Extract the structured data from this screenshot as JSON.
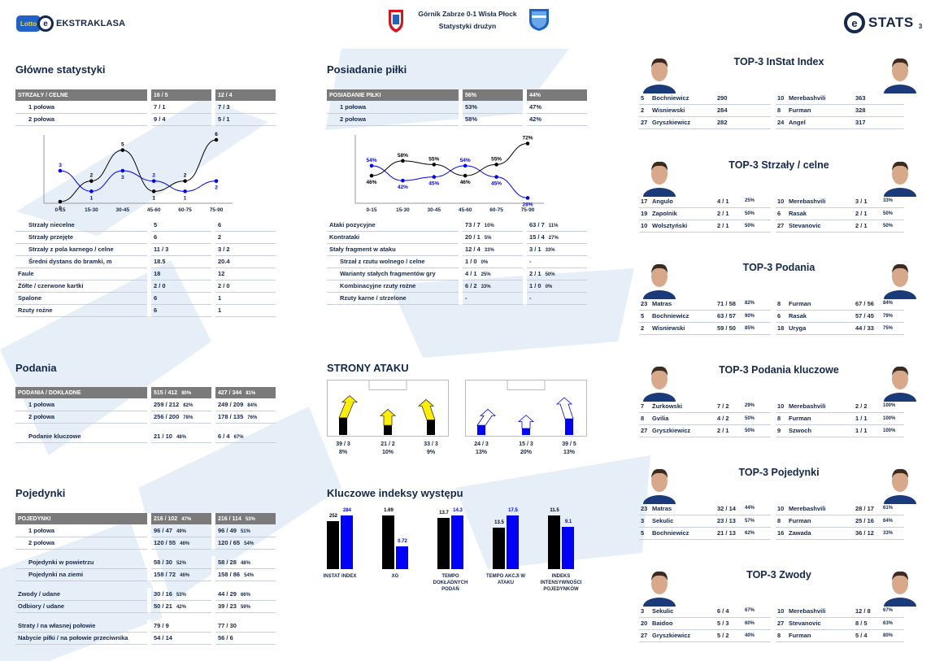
{
  "header": {
    "league": "EKSTRAKLASA",
    "lotto": "Lotto",
    "match_title": "Górnik Zabrze 0-1 Wisła Płock",
    "match_subtitle": "Statystyki drużyn",
    "stats_label": "STATS",
    "page_number": "3"
  },
  "colors": {
    "navy": "#14284b",
    "blue": "#0000ff",
    "black": "#000000",
    "yellow": "#ffee00",
    "header_gray": "#7a7a7a",
    "accent": "#1f63c9"
  },
  "main_stats": {
    "title": "Główne statystyki",
    "header": {
      "label": "STRZAŁY / CELNE",
      "home": "16 / 5",
      "away": "12 / 4"
    },
    "rows_top": [
      {
        "label": "1 połowa",
        "home": "7 / 1",
        "away": "7 / 3"
      },
      {
        "label": "2 połowa",
        "home": "9 / 4",
        "away": "5 / 1"
      }
    ],
    "rows_bottom": [
      {
        "label": "Strzały niecelne",
        "home": "5",
        "away": "6",
        "indent": true
      },
      {
        "label": "Strzały przejęte",
        "home": "6",
        "away": "2",
        "indent": true
      },
      {
        "label": "Strzały z pola karnego / celne",
        "home": "11 / 3",
        "away": "3 / 2",
        "indent": true
      },
      {
        "label": "Średni dystans do bramki, m",
        "home": "18.5",
        "away": "20.4",
        "indent": true
      },
      {
        "label": "Faule",
        "home": "18",
        "away": "12",
        "indent": false
      },
      {
        "label": "Żółte / czerwone kartki",
        "home": "2 / 0",
        "away": "2 / 0",
        "indent": false
      },
      {
        "label": "Spalone",
        "home": "6",
        "away": "1",
        "indent": false
      },
      {
        "label": "Rzuty rożne",
        "home": "6",
        "away": "1",
        "indent": false
      }
    ]
  },
  "possession": {
    "title": "Posiadanie piłki",
    "header": {
      "label": "POSIADANIE PIŁKI",
      "home": "56%",
      "away": "44%"
    },
    "rows_top": [
      {
        "label": "1 połowa",
        "home": "53%",
        "away": "47%"
      },
      {
        "label": "2 połowa",
        "home": "58%",
        "away": "42%"
      }
    ],
    "rows_bottom": [
      {
        "label": "Ataki pozycyjne",
        "home": "73 / 7",
        "home_pct": "10%",
        "away": "63 / 7",
        "away_pct": "11%",
        "indent": false
      },
      {
        "label": "Kontrataki",
        "home": "20 / 1",
        "home_pct": "5%",
        "away": "15 / 4",
        "away_pct": "27%",
        "indent": false
      },
      {
        "label": "Stały fragment w ataku",
        "home": "12 / 4",
        "home_pct": "33%",
        "away": "3 / 1",
        "away_pct": "33%",
        "indent": false
      },
      {
        "label": "Strzał z rzutu wolnego / celne",
        "home": "1 / 0",
        "home_pct": "0%",
        "away": "-",
        "away_pct": "",
        "indent": true
      },
      {
        "label": "Warianty stałych fragmentów gry",
        "home": "4 / 1",
        "home_pct": "25%",
        "away": "2 / 1",
        "away_pct": "50%",
        "indent": true
      },
      {
        "label": "Kombinacyjne rzuty rożne",
        "home": "6 / 2",
        "home_pct": "33%",
        "away": "1 / 0",
        "away_pct": "0%",
        "indent": true
      },
      {
        "label": "Rzuty karne / strzelone",
        "home": "-",
        "home_pct": "",
        "away": "-",
        "away_pct": "",
        "indent": true
      }
    ]
  },
  "passes": {
    "title": "Podania",
    "header": {
      "label": "PODANIA / DOKŁADNE",
      "home": "515 / 412",
      "home_pct": "80%",
      "away": "427 / 344",
      "away_pct": "81%"
    },
    "rows": [
      {
        "label": "1 połowa",
        "home": "259 / 212",
        "home_pct": "82%",
        "away": "249 / 209",
        "away_pct": "84%"
      },
      {
        "label": "2 połowa",
        "home": "256 / 200",
        "home_pct": "78%",
        "away": "178 / 135",
        "away_pct": "76%"
      },
      {
        "label": "Podanie kluczowe",
        "home": "21 / 10",
        "home_pct": "48%",
        "away": "6 / 4",
        "away_pct": "67%"
      }
    ]
  },
  "duels": {
    "title": "Pojedynki",
    "header": {
      "label": "POJEDYNKI",
      "home": "216 / 102",
      "home_pct": "47%",
      "away": "216 / 114",
      "away_pct": "53%"
    },
    "rows": [
      {
        "label": "1 połowa",
        "home": "96 / 47",
        "home_pct": "49%",
        "away": "96 / 49",
        "away_pct": "51%",
        "indent": true,
        "gap": false
      },
      {
        "label": "2 połowa",
        "home": "120 / 55",
        "home_pct": "46%",
        "away": "120 / 65",
        "away_pct": "54%",
        "indent": true,
        "gap": false
      },
      {
        "label": "Pojedynki w powietrzu",
        "home": "58 / 30",
        "home_pct": "52%",
        "away": "58 / 28",
        "away_pct": "48%",
        "indent": true,
        "gap": true
      },
      {
        "label": "Pojedynki na ziemi",
        "home": "158 / 72",
        "home_pct": "46%",
        "away": "158 / 86",
        "away_pct": "54%",
        "indent": true,
        "gap": false
      },
      {
        "label": "Zwody / udane",
        "home": "30 / 16",
        "home_pct": "53%",
        "away": "44 / 29",
        "away_pct": "66%",
        "indent": false,
        "gap": true
      },
      {
        "label": "Odbiory / udane",
        "home": "50 / 21",
        "home_pct": "42%",
        "away": "39 / 23",
        "away_pct": "59%",
        "indent": false,
        "gap": false
      },
      {
        "label": "Straty / na własnej połowie",
        "home": "79 / 9",
        "home_pct": "",
        "away": "77 / 30",
        "away_pct": "",
        "indent": false,
        "gap": true
      },
      {
        "label": "Nabycie piłki / na połowie przeciwnika",
        "home": "54 / 14",
        "home_pct": "",
        "away": "56 / 6",
        "away_pct": "",
        "indent": false,
        "gap": false
      }
    ]
  },
  "attack_sides": {
    "title": "STRONY ATAKU",
    "home": [
      {
        "value": "39 / 3",
        "pct": "8%",
        "level": 0.8
      },
      {
        "value": "21 / 2",
        "pct": "10%",
        "level": 0.45
      },
      {
        "value": "33 / 3",
        "pct": "9%",
        "level": 0.7
      }
    ],
    "away": [
      {
        "value": "24 / 3",
        "pct": "13%",
        "level": 0.45
      },
      {
        "value": "15 / 3",
        "pct": "20%",
        "level": 0.3
      },
      {
        "value": "39 / 5",
        "pct": "13%",
        "level": 0.75
      }
    ]
  },
  "key_indices": {
    "title": "Kluczowe indeksy występu",
    "items": [
      {
        "label": "INSTAT INDEX",
        "home": 252,
        "home_label": "252",
        "away": 284,
        "away_label": "284"
      },
      {
        "label": "XG",
        "home": 1.69,
        "home_label": "1.69",
        "away": 0.72,
        "away_label": "0.72"
      },
      {
        "label": "TEMPO DOKŁADNYCH PODAŃ",
        "home": 13.7,
        "home_label": "13.7",
        "away": 14.3,
        "away_label": "14.3"
      },
      {
        "label": "TEMPO AKCJI W ATAKU",
        "home": 13.5,
        "home_label": "13.5",
        "away": 17.5,
        "away_label": "17.5"
      },
      {
        "label": "INDEKS INTENSYWNOŚCI POJEDYNKÓW",
        "home": 11.5,
        "home_label": "11.5",
        "away": 9.1,
        "away_label": "9.1"
      }
    ]
  },
  "chart_data": [
    {
      "type": "line",
      "title": "",
      "categories": [
        "0-15",
        "15-30",
        "30-45",
        "45-60",
        "60-75",
        "75-90"
      ],
      "series": [
        {
          "values": [
            0,
            2,
            5,
            1,
            2,
            6
          ],
          "labels": [
            "0",
            "2",
            "5",
            "1",
            "2",
            "6"
          ]
        },
        {
          "values": [
            3,
            1,
            3,
            2,
            1,
            2
          ],
          "labels": [
            "3",
            "1",
            "3",
            "2",
            "1",
            "2"
          ]
        }
      ],
      "ylim": [
        0,
        6
      ]
    },
    {
      "type": "line",
      "title": "",
      "categories": [
        "0-15",
        "15-30",
        "30-45",
        "45-60",
        "60-75",
        "75-90"
      ],
      "series": [
        {
          "values": [
            46,
            58,
            55,
            46,
            55,
            72
          ],
          "labels": [
            "46%",
            "58%",
            "55%",
            "46%",
            "55%",
            "72%"
          ]
        },
        {
          "values": [
            54,
            42,
            45,
            54,
            45,
            28
          ],
          "labels": [
            "54%",
            "42%",
            "45%",
            "54%",
            "45%",
            "28%"
          ]
        }
      ],
      "ylim": [
        25,
        75
      ]
    }
  ],
  "top3": [
    {
      "title": "TOP-3 InStat Index",
      "rows": [
        {
          "hn": "5",
          "hp": "Bochniewicz",
          "hv": "290",
          "hpct": "",
          "an": "10",
          "ap": "Merebashvili",
          "av": "363",
          "apct": ""
        },
        {
          "hn": "2",
          "hp": "Wisniewski",
          "hv": "284",
          "hpct": "",
          "an": "8",
          "ap": "Furman",
          "av": "328",
          "apct": ""
        },
        {
          "hn": "27",
          "hp": "Gryszkiewicz",
          "hv": "282",
          "hpct": "",
          "an": "24",
          "ap": "Angel",
          "av": "317",
          "apct": ""
        }
      ]
    },
    {
      "title": "TOP-3 Strzały / celne",
      "rows": [
        {
          "hn": "17",
          "hp": "Angulo",
          "hv": "4 / 1",
          "hpct": "25%",
          "an": "10",
          "ap": "Merebashvili",
          "av": "3 / 1",
          "apct": "33%"
        },
        {
          "hn": "19",
          "hp": "Zapolnik",
          "hv": "2 / 1",
          "hpct": "50%",
          "an": "6",
          "ap": "Rasak",
          "av": "2 / 1",
          "apct": "50%"
        },
        {
          "hn": "10",
          "hp": "Wolsztyński",
          "hv": "2 / 1",
          "hpct": "50%",
          "an": "27",
          "ap": "Stevanovic",
          "av": "2 / 1",
          "apct": "50%"
        }
      ]
    },
    {
      "title": "TOP-3 Podania",
      "rows": [
        {
          "hn": "23",
          "hp": "Matras",
          "hv": "71 / 58",
          "hpct": "82%",
          "an": "8",
          "ap": "Furman",
          "av": "67 / 56",
          "apct": "84%"
        },
        {
          "hn": "5",
          "hp": "Bochniewicz",
          "hv": "63 / 57",
          "hpct": "90%",
          "an": "6",
          "ap": "Rasak",
          "av": "57 / 45",
          "apct": "79%"
        },
        {
          "hn": "2",
          "hp": "Wisniewski",
          "hv": "59 / 50",
          "hpct": "85%",
          "an": "18",
          "ap": "Uryga",
          "av": "44 / 33",
          "apct": "75%"
        }
      ]
    },
    {
      "title": "TOP-3 Podania kluczowe",
      "rows": [
        {
          "hn": "7",
          "hp": "Żurkowski",
          "hv": "7 / 2",
          "hpct": "29%",
          "an": "10",
          "ap": "Merebashvili",
          "av": "2 / 2",
          "apct": "100%"
        },
        {
          "hn": "8",
          "hp": "Gvilia",
          "hv": "4 / 2",
          "hpct": "50%",
          "an": "8",
          "ap": "Furman",
          "av": "1 / 1",
          "apct": "100%"
        },
        {
          "hn": "27",
          "hp": "Gryszkiewicz",
          "hv": "2 / 1",
          "hpct": "50%",
          "an": "9",
          "ap": "Szwoch",
          "av": "1 / 1",
          "apct": "100%"
        }
      ]
    },
    {
      "title": "TOP-3 Pojedynki",
      "rows": [
        {
          "hn": "23",
          "hp": "Matras",
          "hv": "32 / 14",
          "hpct": "44%",
          "an": "10",
          "ap": "Merebashvili",
          "av": "28 / 17",
          "apct": "61%"
        },
        {
          "hn": "3",
          "hp": "Sekulic",
          "hv": "23 / 13",
          "hpct": "57%",
          "an": "8",
          "ap": "Furman",
          "av": "25 / 16",
          "apct": "64%"
        },
        {
          "hn": "5",
          "hp": "Bochniewicz",
          "hv": "21 / 13",
          "hpct": "62%",
          "an": "16",
          "ap": "Zawada",
          "av": "36 / 12",
          "apct": "33%"
        }
      ]
    },
    {
      "title": "TOP-3 Zwody",
      "rows": [
        {
          "hn": "3",
          "hp": "Sekulic",
          "hv": "6 / 4",
          "hpct": "67%",
          "an": "10",
          "ap": "Merebashvili",
          "av": "12 / 8",
          "apct": "67%"
        },
        {
          "hn": "20",
          "hp": "Baidoo",
          "hv": "5 / 3",
          "hpct": "60%",
          "an": "27",
          "ap": "Stevanovic",
          "av": "8 / 5",
          "apct": "63%"
        },
        {
          "hn": "27",
          "hp": "Gryszkiewicz",
          "hv": "5 / 2",
          "hpct": "40%",
          "an": "8",
          "ap": "Furman",
          "av": "5 / 4",
          "apct": "80%"
        }
      ]
    }
  ]
}
